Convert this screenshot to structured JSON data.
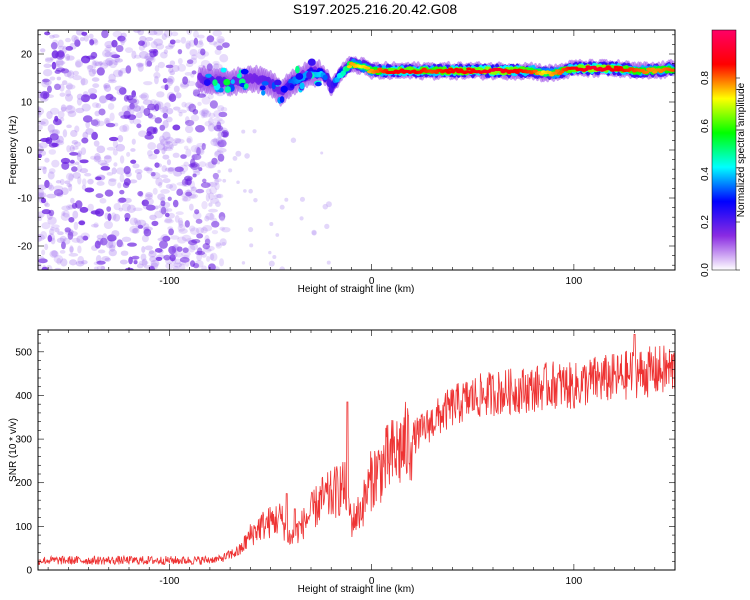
{
  "figure": {
    "title": "S197.2025.216.20.42.G08"
  },
  "chart_data": [
    {
      "type": "heatmap",
      "xlabel": "Height of straight line (km)",
      "ylabel": "Frequency (Hz)",
      "xlim": [
        -165,
        150
      ],
      "ylim": [
        -25,
        25
      ],
      "xticks": [
        -100,
        0,
        100
      ],
      "yticks": [
        -20,
        -10,
        0,
        10,
        20
      ],
      "colorbar": {
        "label": "Normalized spectral amplitude",
        "range": [
          0,
          1
        ],
        "ticks": [
          0.0,
          0.2,
          0.4,
          0.6,
          0.8
        ],
        "colormap": [
          "#ffffff",
          "#8a2be2",
          "#0000ff",
          "#00ffff",
          "#00ff00",
          "#ffff00",
          "#ff0000",
          "#ff0066"
        ]
      },
      "ridge": {
        "x": [
          -85,
          -80,
          -70,
          -60,
          -50,
          -45,
          -40,
          -35,
          -30,
          -25,
          -22,
          -20,
          -15,
          -10,
          -5,
          0,
          10,
          20,
          30,
          40,
          50,
          60,
          70,
          80,
          85,
          90,
          95,
          100,
          110,
          120,
          130,
          140,
          150
        ],
        "y": [
          15,
          14.5,
          14,
          15,
          14,
          12,
          14,
          15,
          16,
          16,
          15,
          13,
          16,
          18,
          17.5,
          16.5,
          16.5,
          16.5,
          16.5,
          16.5,
          16.5,
          16.5,
          16.5,
          16.5,
          16,
          16,
          16.5,
          17,
          17,
          17,
          16.5,
          16.5,
          17
        ],
        "amplitude": [
          0.3,
          0.4,
          0.35,
          0.3,
          0.35,
          0.3,
          0.45,
          0.5,
          0.5,
          0.55,
          0.4,
          0.4,
          0.6,
          0.75,
          0.7,
          0.75,
          0.85,
          0.85,
          0.8,
          0.85,
          0.85,
          0.9,
          0.85,
          0.8,
          0.7,
          0.75,
          0.8,
          0.85,
          0.9,
          0.85,
          0.8,
          0.75,
          0.8
        ]
      },
      "noise_region": {
        "x_range": [
          -165,
          -80
        ],
        "y_range": [
          -25,
          25
        ],
        "amplitude": [
          0.05,
          0.2
        ]
      }
    },
    {
      "type": "line",
      "xlabel": "Height of straight line (km)",
      "ylabel": "SNR (10 * v/v)",
      "xlim": [
        -165,
        150
      ],
      "ylim": [
        0,
        550
      ],
      "xticks": [
        -100,
        0,
        100
      ],
      "yticks": [
        0,
        100,
        200,
        300,
        400,
        500
      ],
      "color": "#ee3333",
      "series": [
        {
          "x": [
            -165,
            -140,
            -120,
            -100,
            -85,
            -75,
            -65,
            -60,
            -55,
            -50,
            -45,
            -40,
            -35,
            -30,
            -25,
            -20,
            -15,
            -12,
            -10,
            -5,
            0,
            10,
            20,
            30,
            40,
            50,
            60,
            70,
            80,
            90,
            100,
            110,
            120,
            130,
            140,
            150
          ],
          "y": [
            22,
            22,
            22,
            22,
            22,
            25,
            45,
            80,
            100,
            110,
            120,
            70,
            100,
            130,
            160,
            170,
            190,
            180,
            110,
            140,
            210,
            260,
            300,
            340,
            375,
            395,
            405,
            410,
            415,
            425,
            420,
            435,
            440,
            450,
            455,
            460
          ]
        }
      ],
      "spikes": [
        {
          "x": -42,
          "y": 175
        },
        {
          "x": -38,
          "y": 140
        },
        {
          "x": -12,
          "y": 385
        },
        {
          "x": 130,
          "y": 540
        }
      ]
    }
  ]
}
